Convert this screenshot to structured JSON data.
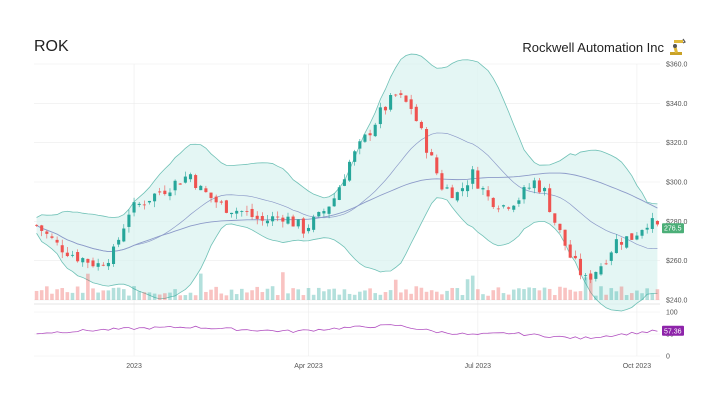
{
  "header": {
    "ticker": "ROK",
    "company": "Rockwell Automation Inc",
    "logo_icon": "robot-arm-icon"
  },
  "colors": {
    "up": "#26a69a",
    "down": "#ef5350",
    "band_fill": "#d9f2ef",
    "band_line": "#6fc1b6",
    "ma": "#8d9bc9",
    "rsi": "#b14fc0",
    "price_tag": "#4caf78",
    "rsi_tag": "#8e24aa"
  },
  "chart_data": {
    "type": "candlestick",
    "price_axis": {
      "min": 240,
      "max": 360,
      "ticks": [
        "$240.0",
        "$260.0",
        "$280.0",
        "$300.0",
        "$320.0",
        "$340.0",
        "$360.0"
      ]
    },
    "rsi_axis": {
      "min": 0,
      "max": 100,
      "ticks": [
        "0",
        "50",
        "100"
      ]
    },
    "x_ticks": [
      "2023",
      "Apr 2023",
      "Jul 2023",
      "Oct 2023"
    ],
    "last_price_label": "276.5",
    "last_rsi_label": "57.36",
    "grid": true,
    "price_anchors": [
      [
        0,
        278
      ],
      [
        4,
        268
      ],
      [
        8,
        262
      ],
      [
        12,
        258
      ],
      [
        15,
        264
      ],
      [
        18,
        285
      ],
      [
        22,
        292
      ],
      [
        26,
        298
      ],
      [
        30,
        304
      ],
      [
        32,
        296
      ],
      [
        36,
        288
      ],
      [
        40,
        285
      ],
      [
        44,
        280
      ],
      [
        48,
        283
      ],
      [
        52,
        276
      ],
      [
        55,
        282
      ],
      [
        58,
        292
      ],
      [
        61,
        310
      ],
      [
        64,
        322
      ],
      [
        67,
        335
      ],
      [
        70,
        344
      ],
      [
        73,
        338
      ],
      [
        76,
        318
      ],
      [
        79,
        298
      ],
      [
        82,
        294
      ],
      [
        85,
        304
      ],
      [
        88,
        292
      ],
      [
        91,
        288
      ],
      [
        94,
        292
      ],
      [
        97,
        300
      ],
      [
        99,
        295
      ],
      [
        101,
        280
      ],
      [
        104,
        262
      ],
      [
        107,
        250
      ],
      [
        110,
        258
      ],
      [
        113,
        270
      ],
      [
        116,
        272
      ],
      [
        119,
        280
      ],
      [
        121,
        277
      ]
    ],
    "rsi_anchors": [
      [
        0,
        52
      ],
      [
        10,
        58
      ],
      [
        20,
        63
      ],
      [
        30,
        66
      ],
      [
        40,
        60
      ],
      [
        50,
        56
      ],
      [
        60,
        64
      ],
      [
        70,
        70
      ],
      [
        78,
        55
      ],
      [
        85,
        48
      ],
      [
        92,
        52
      ],
      [
        100,
        45
      ],
      [
        106,
        40
      ],
      [
        112,
        47
      ],
      [
        118,
        54
      ],
      [
        121,
        57
      ]
    ]
  }
}
